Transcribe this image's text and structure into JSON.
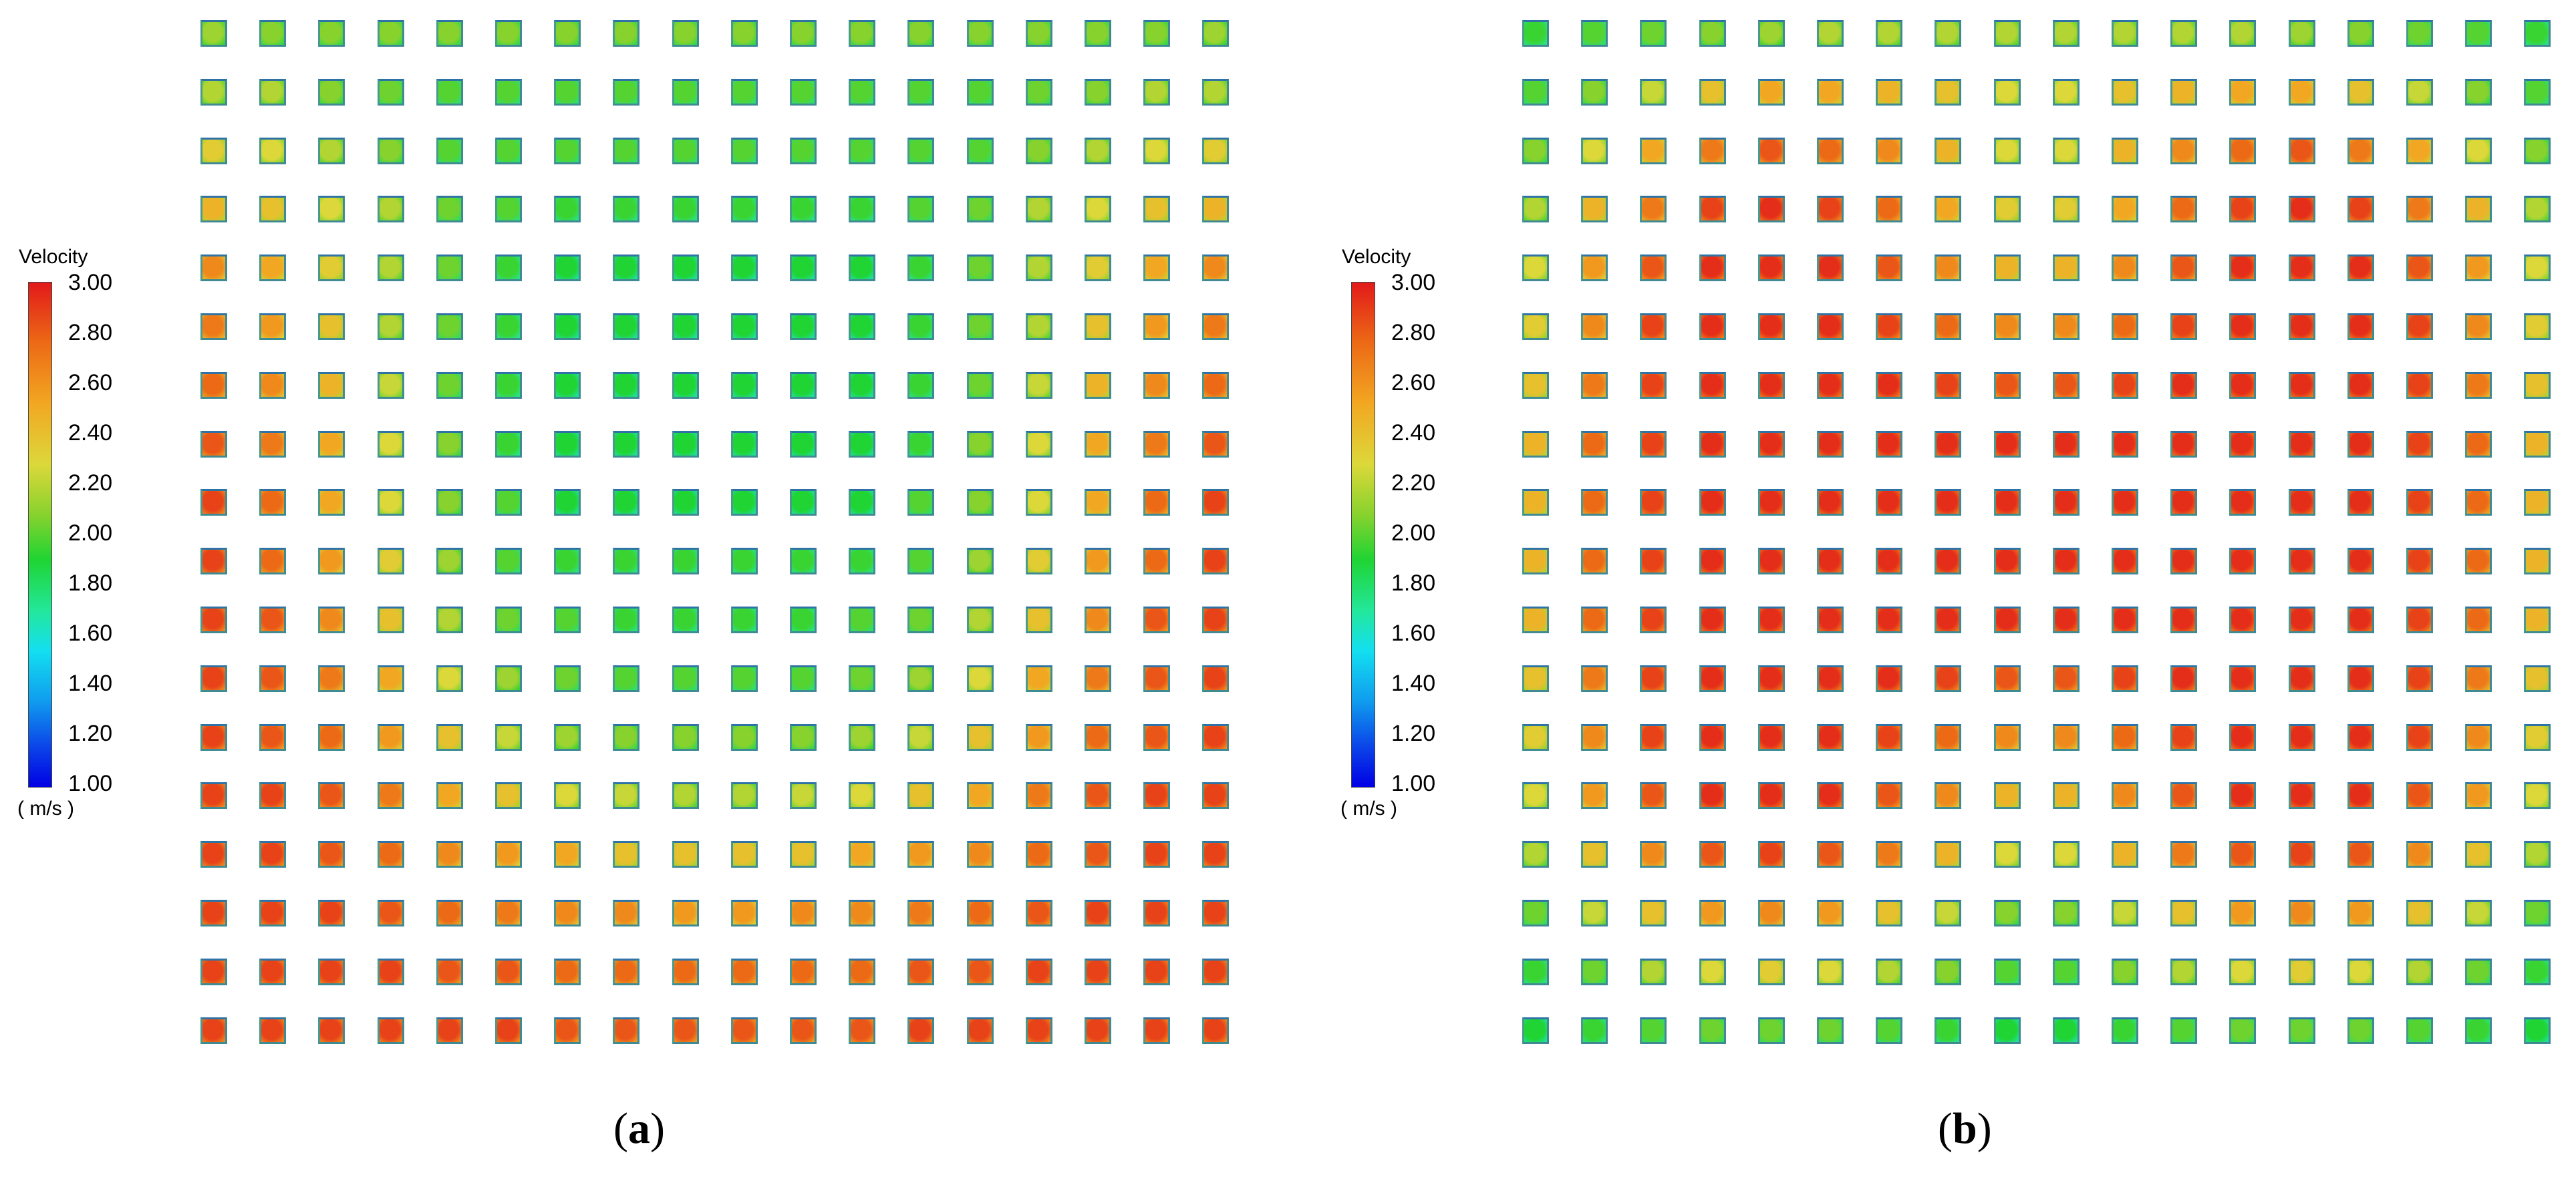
{
  "panels": [
    {
      "id": "a",
      "caption_open": "(",
      "caption_letter": "a",
      "caption_close": ")",
      "legend": {
        "title": "Velocity",
        "unit": "( m/s )",
        "ticks": [
          "3.00",
          "2.80",
          "2.60",
          "2.40",
          "2.20",
          "2.00",
          "1.80",
          "1.60",
          "1.40",
          "1.20",
          "1.00"
        ],
        "range": [
          1.0,
          3.0
        ],
        "colors": [
          "#0000e4",
          "#0b45e8",
          "#109cee",
          "#13dff0",
          "#23e79a",
          "#1fd433",
          "#88d22e",
          "#dcd83a",
          "#f2a722",
          "#ec6a16",
          "#e21a1a"
        ]
      },
      "grid": {
        "rows": 18,
        "cols": 18,
        "description": "velocity in grid cells: lower at top-center, higher toward bottom and edges",
        "velocity": [
          [
            2.25,
            2.2,
            2.2,
            2.2,
            2.2,
            2.2,
            2.2,
            2.2,
            2.2,
            2.2,
            2.2,
            2.2,
            2.2,
            2.2,
            2.2,
            2.2,
            2.2,
            2.25
          ],
          [
            2.3,
            2.3,
            2.2,
            2.15,
            2.1,
            2.1,
            2.1,
            2.1,
            2.1,
            2.1,
            2.1,
            2.1,
            2.1,
            2.1,
            2.15,
            2.2,
            2.3,
            2.3
          ],
          [
            2.45,
            2.4,
            2.3,
            2.2,
            2.1,
            2.1,
            2.1,
            2.1,
            2.1,
            2.1,
            2.1,
            2.1,
            2.1,
            2.1,
            2.2,
            2.3,
            2.4,
            2.45
          ],
          [
            2.55,
            2.5,
            2.4,
            2.3,
            2.15,
            2.1,
            2.05,
            2.05,
            2.05,
            2.05,
            2.05,
            2.05,
            2.1,
            2.15,
            2.3,
            2.4,
            2.5,
            2.55
          ],
          [
            2.7,
            2.6,
            2.45,
            2.3,
            2.15,
            2.05,
            2.0,
            2.0,
            2.0,
            2.0,
            2.0,
            2.0,
            2.05,
            2.15,
            2.3,
            2.45,
            2.6,
            2.7
          ],
          [
            2.75,
            2.65,
            2.5,
            2.3,
            2.15,
            2.05,
            2.0,
            2.0,
            2.0,
            2.0,
            2.0,
            2.0,
            2.05,
            2.15,
            2.3,
            2.5,
            2.65,
            2.75
          ],
          [
            2.8,
            2.7,
            2.55,
            2.35,
            2.15,
            2.05,
            2.0,
            2.0,
            2.0,
            2.0,
            2.0,
            2.0,
            2.05,
            2.15,
            2.35,
            2.55,
            2.7,
            2.8
          ],
          [
            2.85,
            2.75,
            2.6,
            2.4,
            2.2,
            2.05,
            2.0,
            2.0,
            2.0,
            2.0,
            2.0,
            2.0,
            2.05,
            2.2,
            2.4,
            2.6,
            2.75,
            2.85
          ],
          [
            2.9,
            2.8,
            2.6,
            2.4,
            2.2,
            2.1,
            2.0,
            2.0,
            2.0,
            2.0,
            2.0,
            2.0,
            2.1,
            2.2,
            2.4,
            2.6,
            2.8,
            2.9
          ],
          [
            2.9,
            2.8,
            2.65,
            2.45,
            2.25,
            2.1,
            2.05,
            2.05,
            2.05,
            2.05,
            2.05,
            2.05,
            2.1,
            2.25,
            2.45,
            2.65,
            2.8,
            2.9
          ],
          [
            2.9,
            2.85,
            2.7,
            2.5,
            2.3,
            2.15,
            2.1,
            2.05,
            2.05,
            2.05,
            2.05,
            2.1,
            2.15,
            2.3,
            2.5,
            2.7,
            2.85,
            2.9
          ],
          [
            2.9,
            2.85,
            2.75,
            2.6,
            2.4,
            2.25,
            2.15,
            2.1,
            2.1,
            2.1,
            2.1,
            2.15,
            2.25,
            2.4,
            2.6,
            2.75,
            2.85,
            2.9
          ],
          [
            2.9,
            2.85,
            2.8,
            2.65,
            2.5,
            2.35,
            2.25,
            2.2,
            2.2,
            2.2,
            2.2,
            2.25,
            2.35,
            2.5,
            2.65,
            2.8,
            2.85,
            2.9
          ],
          [
            2.9,
            2.9,
            2.85,
            2.75,
            2.6,
            2.5,
            2.4,
            2.35,
            2.3,
            2.3,
            2.35,
            2.4,
            2.5,
            2.6,
            2.75,
            2.85,
            2.9,
            2.9
          ],
          [
            2.9,
            2.9,
            2.85,
            2.8,
            2.7,
            2.65,
            2.6,
            2.5,
            2.5,
            2.5,
            2.5,
            2.6,
            2.65,
            2.7,
            2.8,
            2.85,
            2.9,
            2.9
          ],
          [
            2.9,
            2.9,
            2.9,
            2.85,
            2.8,
            2.75,
            2.7,
            2.7,
            2.65,
            2.65,
            2.7,
            2.7,
            2.75,
            2.8,
            2.85,
            2.9,
            2.9,
            2.9
          ],
          [
            2.9,
            2.9,
            2.9,
            2.9,
            2.85,
            2.85,
            2.8,
            2.8,
            2.8,
            2.8,
            2.8,
            2.8,
            2.85,
            2.85,
            2.9,
            2.9,
            2.9,
            2.9
          ],
          [
            2.9,
            2.9,
            2.9,
            2.9,
            2.9,
            2.9,
            2.85,
            2.85,
            2.85,
            2.85,
            2.85,
            2.85,
            2.9,
            2.9,
            2.9,
            2.9,
            2.9,
            2.9
          ]
        ]
      }
    },
    {
      "id": "b",
      "caption_open": "(",
      "caption_letter": "b",
      "caption_close": ")",
      "legend": {
        "title": "Velocity",
        "unit": "( m/s )",
        "ticks": [
          "3.00",
          "2.80",
          "2.60",
          "2.40",
          "2.20",
          "2.00",
          "1.80",
          "1.60",
          "1.40",
          "1.20",
          "1.00"
        ],
        "range": [
          1.0,
          3.0
        ],
        "colors": [
          "#0000e4",
          "#0b45e8",
          "#109cee",
          "#13dff0",
          "#23e79a",
          "#1fd433",
          "#88d22e",
          "#dcd83a",
          "#f2a722",
          "#ec6a16",
          "#e21a1a"
        ]
      },
      "grid": {
        "rows": 18,
        "cols": 18,
        "description": "velocity in grid cells: high in central region, lower toward outer edges",
        "velocity": [
          [
            2.05,
            2.1,
            2.15,
            2.2,
            2.25,
            2.3,
            2.3,
            2.3,
            2.3,
            2.3,
            2.3,
            2.3,
            2.3,
            2.25,
            2.2,
            2.15,
            2.1,
            2.05
          ],
          [
            2.1,
            2.2,
            2.35,
            2.5,
            2.6,
            2.6,
            2.55,
            2.5,
            2.4,
            2.4,
            2.5,
            2.55,
            2.6,
            2.6,
            2.5,
            2.35,
            2.2,
            2.1
          ],
          [
            2.2,
            2.4,
            2.6,
            2.75,
            2.85,
            2.8,
            2.7,
            2.55,
            2.4,
            2.4,
            2.55,
            2.7,
            2.8,
            2.85,
            2.75,
            2.6,
            2.4,
            2.2
          ],
          [
            2.3,
            2.55,
            2.75,
            2.9,
            2.95,
            2.9,
            2.8,
            2.6,
            2.45,
            2.45,
            2.6,
            2.8,
            2.9,
            2.95,
            2.9,
            2.75,
            2.55,
            2.3
          ],
          [
            2.4,
            2.65,
            2.85,
            2.95,
            2.95,
            2.95,
            2.85,
            2.7,
            2.55,
            2.55,
            2.7,
            2.85,
            2.95,
            2.95,
            2.95,
            2.85,
            2.65,
            2.4
          ],
          [
            2.45,
            2.7,
            2.9,
            2.95,
            2.95,
            2.95,
            2.9,
            2.8,
            2.7,
            2.7,
            2.8,
            2.9,
            2.95,
            2.95,
            2.95,
            2.9,
            2.7,
            2.45
          ],
          [
            2.5,
            2.75,
            2.9,
            2.95,
            2.95,
            2.95,
            2.95,
            2.9,
            2.85,
            2.85,
            2.9,
            2.95,
            2.95,
            2.95,
            2.95,
            2.9,
            2.75,
            2.5
          ],
          [
            2.55,
            2.8,
            2.9,
            2.95,
            2.95,
            2.95,
            2.95,
            2.95,
            2.95,
            2.95,
            2.95,
            2.95,
            2.95,
            2.95,
            2.95,
            2.9,
            2.8,
            2.55
          ],
          [
            2.55,
            2.8,
            2.9,
            2.95,
            2.95,
            2.95,
            2.95,
            2.95,
            2.95,
            2.95,
            2.95,
            2.95,
            2.95,
            2.95,
            2.95,
            2.9,
            2.8,
            2.55
          ],
          [
            2.55,
            2.8,
            2.9,
            2.95,
            2.95,
            2.95,
            2.95,
            2.95,
            2.95,
            2.95,
            2.95,
            2.95,
            2.95,
            2.95,
            2.95,
            2.9,
            2.8,
            2.55
          ],
          [
            2.55,
            2.8,
            2.9,
            2.95,
            2.95,
            2.95,
            2.95,
            2.95,
            2.95,
            2.95,
            2.95,
            2.95,
            2.95,
            2.95,
            2.95,
            2.9,
            2.8,
            2.55
          ],
          [
            2.5,
            2.75,
            2.9,
            2.95,
            2.95,
            2.95,
            2.95,
            2.9,
            2.85,
            2.85,
            2.9,
            2.95,
            2.95,
            2.95,
            2.95,
            2.9,
            2.75,
            2.5
          ],
          [
            2.45,
            2.7,
            2.9,
            2.95,
            2.95,
            2.95,
            2.9,
            2.8,
            2.7,
            2.7,
            2.8,
            2.9,
            2.95,
            2.95,
            2.95,
            2.9,
            2.7,
            2.45
          ],
          [
            2.4,
            2.65,
            2.85,
            2.95,
            2.95,
            2.95,
            2.85,
            2.7,
            2.55,
            2.55,
            2.7,
            2.85,
            2.95,
            2.95,
            2.95,
            2.85,
            2.65,
            2.4
          ],
          [
            2.3,
            2.5,
            2.7,
            2.85,
            2.9,
            2.85,
            2.75,
            2.55,
            2.4,
            2.4,
            2.55,
            2.75,
            2.85,
            2.9,
            2.85,
            2.7,
            2.5,
            2.3
          ],
          [
            2.15,
            2.35,
            2.5,
            2.65,
            2.7,
            2.65,
            2.5,
            2.35,
            2.2,
            2.2,
            2.35,
            2.5,
            2.65,
            2.7,
            2.65,
            2.5,
            2.35,
            2.15
          ],
          [
            2.05,
            2.15,
            2.3,
            2.4,
            2.45,
            2.4,
            2.3,
            2.2,
            2.1,
            2.1,
            2.2,
            2.3,
            2.4,
            2.45,
            2.4,
            2.3,
            2.15,
            2.05
          ],
          [
            2.0,
            2.05,
            2.1,
            2.15,
            2.15,
            2.15,
            2.1,
            2.05,
            2.0,
            2.0,
            2.05,
            2.1,
            2.15,
            2.15,
            2.15,
            2.1,
            2.05,
            2.0
          ]
        ]
      }
    }
  ]
}
